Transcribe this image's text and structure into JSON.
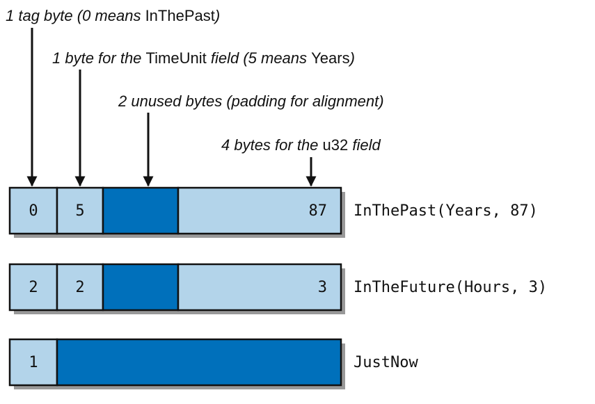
{
  "annotations": [
    [
      "1 tag byte (0 means ",
      "InThePast",
      ")"
    ],
    [
      "1 byte for the ",
      "TimeUnit",
      " field (5 means ",
      "Years",
      ")"
    ],
    [
      "2 unused bytes (padding for alignment)"
    ],
    [
      "4 bytes for the ",
      "u32",
      " field"
    ]
  ],
  "rows": [
    {
      "values": [
        0,
        5,
        87
      ],
      "label": "InThePast(Years, 87)"
    },
    {
      "values": [
        2,
        2,
        3
      ],
      "label": "InTheFuture(Hours, 3)"
    },
    {
      "values": [
        1
      ],
      "label": "JustNow"
    }
  ]
}
